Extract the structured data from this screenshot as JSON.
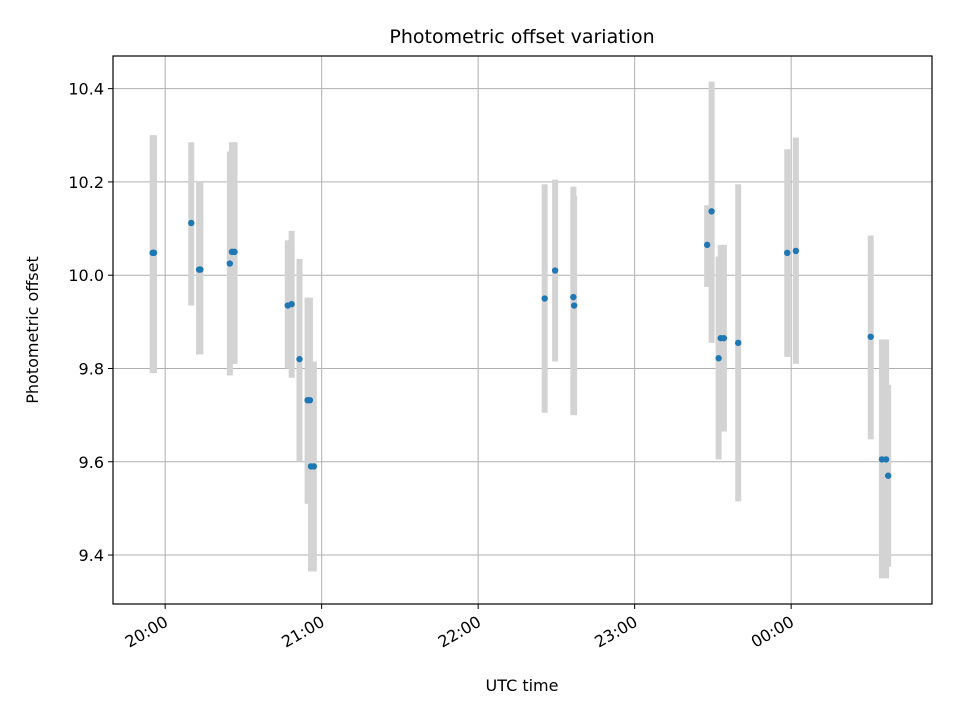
{
  "chart_data": {
    "type": "scatter",
    "title": "Photometric offset variation",
    "xlabel": "UTC time",
    "ylabel": "Photometric offset",
    "x_tick_labels": [
      "20:00",
      "21:00",
      "22:00",
      "23:00",
      "00:00"
    ],
    "x_ticks_minutes": [
      1200,
      1260,
      1320,
      1380,
      1440
    ],
    "xlim_minutes": [
      1180,
      1494
    ],
    "y_ticks": [
      9.4,
      9.6,
      9.8,
      10.0,
      10.2,
      10.4
    ],
    "ylim": [
      9.295,
      10.47
    ],
    "grid": true,
    "legend": "none",
    "marker_color": "#1f77b4",
    "errorbar_color": "#d3d3d3",
    "points": [
      {
        "t": 1195.2,
        "y": 10.048,
        "lo": 9.79,
        "hi": 10.3
      },
      {
        "t": 1195.7,
        "y": 10.048,
        "lo": 9.79,
        "hi": 10.3
      },
      {
        "t": 1210.0,
        "y": 10.112,
        "lo": 9.935,
        "hi": 10.285
      },
      {
        "t": 1213.0,
        "y": 10.012,
        "lo": 9.83,
        "hi": 10.2
      },
      {
        "t": 1213.5,
        "y": 10.012,
        "lo": 9.83,
        "hi": 10.2
      },
      {
        "t": 1224.8,
        "y": 10.025,
        "lo": 9.785,
        "hi": 10.265
      },
      {
        "t": 1225.6,
        "y": 10.05,
        "lo": 9.81,
        "hi": 10.285
      },
      {
        "t": 1226.6,
        "y": 10.05,
        "lo": 9.81,
        "hi": 10.285
      },
      {
        "t": 1247.0,
        "y": 9.935,
        "lo": 9.8,
        "hi": 10.075
      },
      {
        "t": 1248.5,
        "y": 9.938,
        "lo": 9.78,
        "hi": 10.095
      },
      {
        "t": 1251.5,
        "y": 9.82,
        "lo": 9.6,
        "hi": 10.035
      },
      {
        "t": 1254.6,
        "y": 9.732,
        "lo": 9.51,
        "hi": 9.952
      },
      {
        "t": 1255.5,
        "y": 9.732,
        "lo": 9.51,
        "hi": 9.952
      },
      {
        "t": 1255.9,
        "y": 9.59,
        "lo": 9.365,
        "hi": 9.815
      },
      {
        "t": 1257.0,
        "y": 9.59,
        "lo": 9.365,
        "hi": 9.815
      },
      {
        "t": 1345.5,
        "y": 9.95,
        "lo": 9.705,
        "hi": 10.195
      },
      {
        "t": 1349.5,
        "y": 10.01,
        "lo": 9.815,
        "hi": 10.205
      },
      {
        "t": 1356.5,
        "y": 9.953,
        "lo": 9.7,
        "hi": 10.19
      },
      {
        "t": 1356.8,
        "y": 9.935,
        "lo": 9.7,
        "hi": 10.17
      },
      {
        "t": 1407.8,
        "y": 10.065,
        "lo": 9.975,
        "hi": 10.15
      },
      {
        "t": 1409.5,
        "y": 10.137,
        "lo": 9.855,
        "hi": 10.415
      },
      {
        "t": 1412.2,
        "y": 9.822,
        "lo": 9.605,
        "hi": 10.04
      },
      {
        "t": 1413.0,
        "y": 9.865,
        "lo": 9.665,
        "hi": 10.065
      },
      {
        "t": 1414.2,
        "y": 9.865,
        "lo": 9.665,
        "hi": 10.065
      },
      {
        "t": 1419.7,
        "y": 9.855,
        "lo": 9.515,
        "hi": 10.195
      },
      {
        "t": 1438.5,
        "y": 10.048,
        "lo": 9.825,
        "hi": 10.27
      },
      {
        "t": 1441.8,
        "y": 10.052,
        "lo": 9.81,
        "hi": 10.295
      },
      {
        "t": 1470.5,
        "y": 9.868,
        "lo": 9.648,
        "hi": 10.085
      },
      {
        "t": 1474.8,
        "y": 9.605,
        "lo": 9.35,
        "hi": 9.862
      },
      {
        "t": 1476.4,
        "y": 9.605,
        "lo": 9.35,
        "hi": 9.862
      },
      {
        "t": 1477.2,
        "y": 9.57,
        "lo": 9.375,
        "hi": 9.765
      }
    ]
  }
}
